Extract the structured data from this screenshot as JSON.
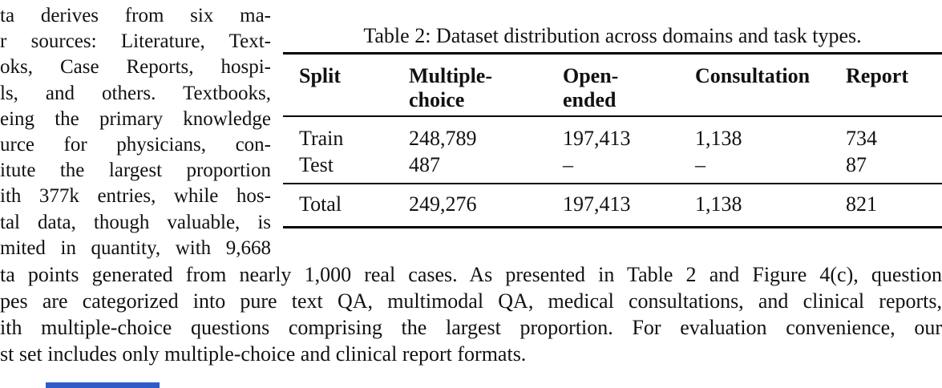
{
  "left_column": {
    "lines": [
      "ta derives from six ma-",
      "r sources: Literature, Text-",
      "oks, Case Reports, hospi-",
      "ls, and others.  Textbooks,",
      "eing the primary knowledge",
      "urce for physicians, con-",
      "itute the largest proportion",
      "ith 377k entries, while hos-",
      "tal data, though valuable, is",
      "mited in quantity, with 9,668"
    ]
  },
  "table": {
    "caption": "Table 2: Dataset distribution across domains and task types.",
    "headers": [
      {
        "line1": "Split",
        "line2": ""
      },
      {
        "line1": "Multiple-",
        "line2": "choice"
      },
      {
        "line1": "Open-",
        "line2": "ended"
      },
      {
        "line1": "Consultation",
        "line2": ""
      },
      {
        "line1": "Report",
        "line2": ""
      }
    ],
    "rows": [
      {
        "cells": [
          "Train",
          "248,789",
          "197,413",
          "1,138",
          "734"
        ]
      },
      {
        "cells": [
          "Test",
          "487",
          "–",
          "–",
          "87"
        ]
      }
    ],
    "total_row": {
      "cells": [
        "Total",
        "249,276",
        "197,413",
        "1,138",
        "821"
      ]
    }
  },
  "body_paragraph": {
    "lines": [
      "ta points generated from nearly 1,000 real cases. As presented in Table  2 and Figure 4(c), question",
      "pes are categorized into pure text QA, multimodal QA, medical consultations, and clinical reports,",
      "ith multiple-choice questions comprising the largest proportion. For evaluation convenience, our",
      "st set includes only multiple-choice and clinical report formats."
    ]
  },
  "fragments": {
    "blue_element_color": "#2d5bc8"
  }
}
